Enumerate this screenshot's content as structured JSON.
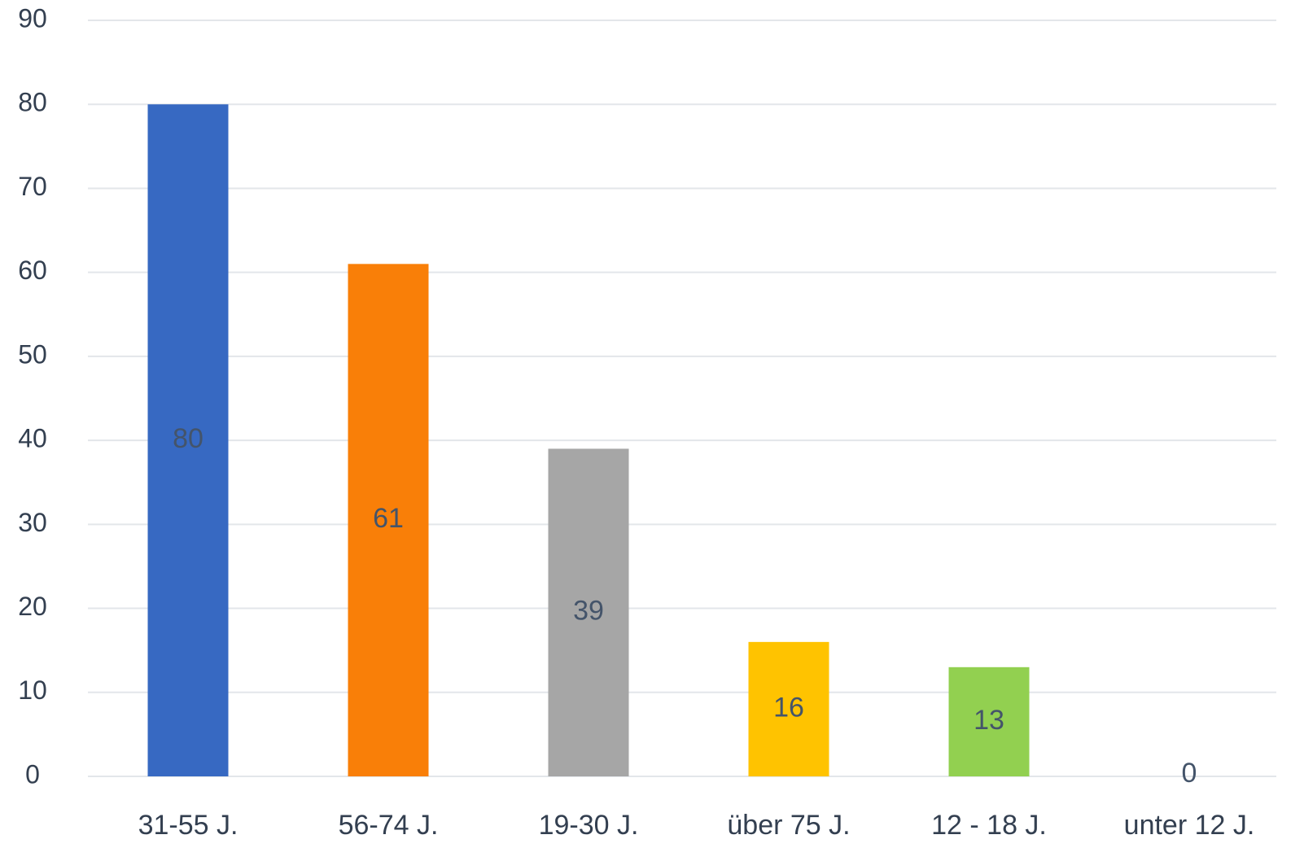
{
  "chart_data": {
    "type": "bar",
    "categories": [
      "31-55 J.",
      "56-74 J.",
      "19-30 J.",
      "über 75 J.",
      "12 - 18 J.",
      "unter 12 J."
    ],
    "values": [
      80,
      61,
      39,
      16,
      13,
      0
    ],
    "colors": [
      "#3769c2",
      "#f97f08",
      "#a6a6a6",
      "#ffc300",
      "#92d050",
      "#5b9bd5"
    ],
    "ylim": [
      0,
      90
    ],
    "yticks": [
      0,
      10,
      20,
      30,
      40,
      50,
      60,
      70,
      80,
      90
    ],
    "grid": true
  }
}
